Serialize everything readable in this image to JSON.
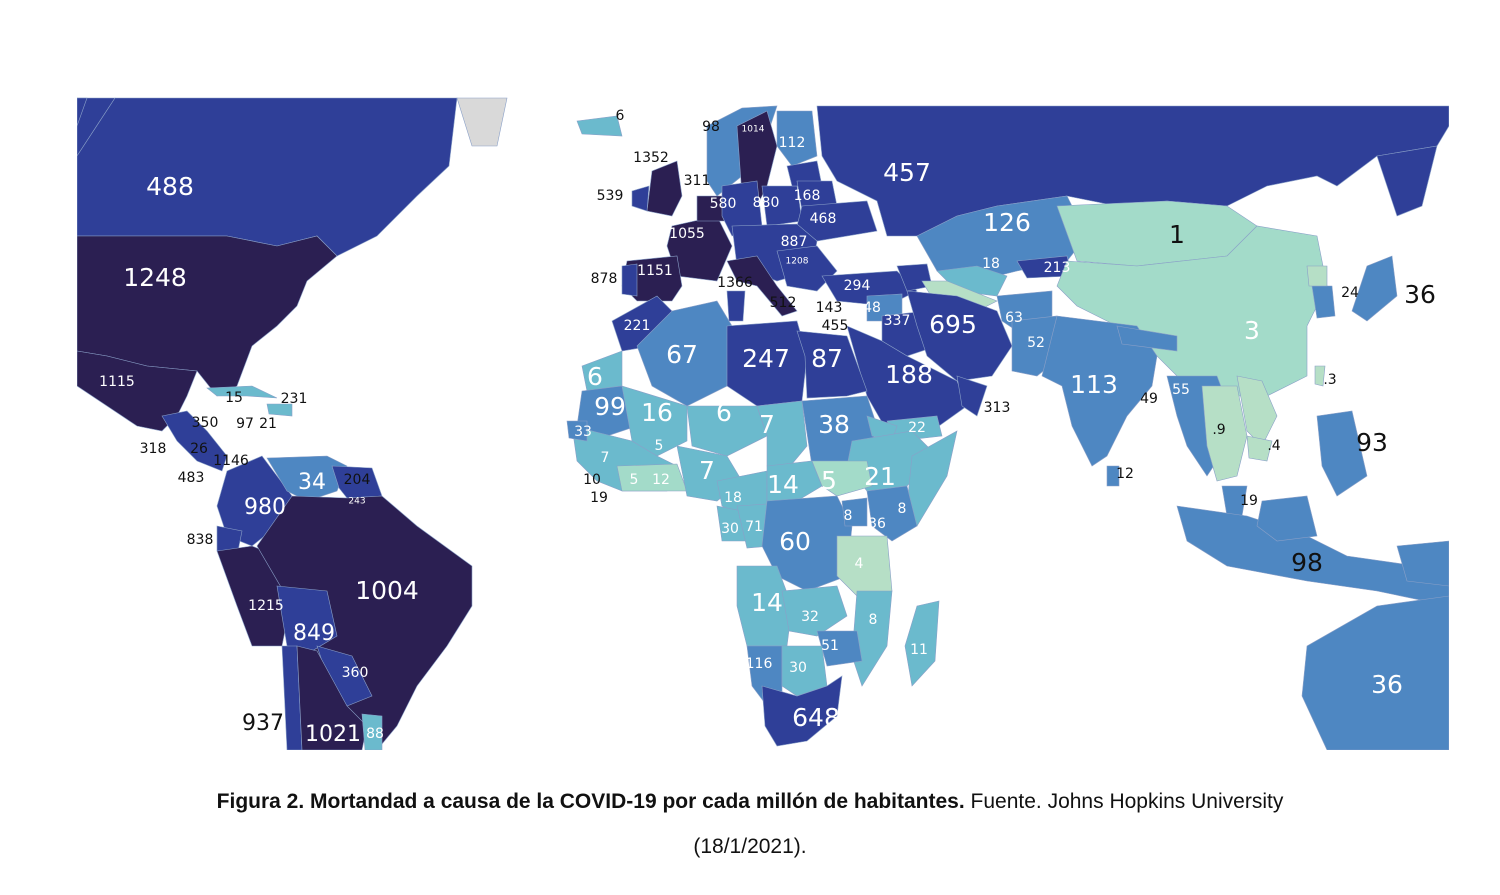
{
  "colors": {
    "ocean": "#ffffff",
    "nodata": "#d9d9d9",
    "c1": "#b6dfc6",
    "c2": "#a3dbc9",
    "c3": "#6bbacd",
    "c4": "#4e87c2",
    "c5": "#2f3f98",
    "c6": "#2b1f52"
  },
  "labels": [
    {
      "id": "canada",
      "text": "488",
      "size": "lg",
      "color": "light"
    },
    {
      "id": "usa",
      "text": "1248",
      "size": "lg",
      "color": "light"
    },
    {
      "id": "mexico",
      "text": "1115",
      "size": "sm",
      "color": "light"
    },
    {
      "id": "cuba",
      "text": "15",
      "size": "sm",
      "color": "dark"
    },
    {
      "id": "puertorico",
      "text": "231",
      "size": "sm",
      "color": "dark"
    },
    {
      "id": "belize",
      "text": "350",
      "size": "sm",
      "color": "dark"
    },
    {
      "id": "jamaica",
      "text": "97",
      "size": "sm",
      "color": "dark"
    },
    {
      "id": "haiti",
      "text": "21",
      "size": "sm",
      "color": "dark"
    },
    {
      "id": "guatemala",
      "text": "318",
      "size": "sm",
      "color": "dark"
    },
    {
      "id": "nicaragua",
      "text": "26",
      "size": "sm",
      "color": "dark"
    },
    {
      "id": "panama",
      "text": "1146",
      "size": "sm",
      "color": "dark"
    },
    {
      "id": "costarica",
      "text": "483",
      "size": "sm",
      "color": "dark"
    },
    {
      "id": "venezuela",
      "text": "34",
      "size": "md",
      "color": "light"
    },
    {
      "id": "guyana",
      "text": "204",
      "size": "sm",
      "color": "dark"
    },
    {
      "id": "suriname",
      "text": "243",
      "size": "xs",
      "color": "light"
    },
    {
      "id": "colombia",
      "text": "980",
      "size": "md",
      "color": "light"
    },
    {
      "id": "ecuador",
      "text": "838",
      "size": "sm",
      "color": "dark"
    },
    {
      "id": "brazil",
      "text": "1004",
      "size": "lg",
      "color": "light"
    },
    {
      "id": "peru",
      "text": "1215",
      "size": "sm",
      "color": "light"
    },
    {
      "id": "bolivia",
      "text": "849",
      "size": "md",
      "color": "light"
    },
    {
      "id": "paraguay",
      "text": "360",
      "size": "sm",
      "color": "light"
    },
    {
      "id": "chile",
      "text": "937",
      "size": "md",
      "color": "dark"
    },
    {
      "id": "argentina",
      "text": "1021",
      "size": "md",
      "color": "light"
    },
    {
      "id": "uruguay",
      "text": "88",
      "size": "sm",
      "color": "light"
    },
    {
      "id": "iceland",
      "text": "6",
      "size": "sm",
      "color": "dark"
    },
    {
      "id": "norway",
      "text": "98",
      "size": "sm",
      "color": "dark"
    },
    {
      "id": "sweden",
      "text": "1014",
      "size": "xs",
      "color": "light"
    },
    {
      "id": "finland",
      "text": "112",
      "size": "sm",
      "color": "light"
    },
    {
      "id": "uk",
      "text": "1352",
      "size": "sm",
      "color": "dark"
    },
    {
      "id": "denmark",
      "text": "311",
      "size": "sm",
      "color": "dark"
    },
    {
      "id": "ireland",
      "text": "539",
      "size": "sm",
      "color": "dark"
    },
    {
      "id": "germany",
      "text": "580",
      "size": "sm",
      "color": "light"
    },
    {
      "id": "poland",
      "text": "880",
      "size": "sm",
      "color": "light"
    },
    {
      "id": "belarus",
      "text": "168",
      "size": "sm",
      "color": "light"
    },
    {
      "id": "ukraine",
      "text": "468",
      "size": "sm",
      "color": "light"
    },
    {
      "id": "france",
      "text": "1055",
      "size": "sm",
      "color": "light"
    },
    {
      "id": "hungary",
      "text": "887",
      "size": "sm",
      "color": "light"
    },
    {
      "id": "bulgaria",
      "text": "1208",
      "size": "xs",
      "color": "light"
    },
    {
      "id": "portugal",
      "text": "878",
      "size": "sm",
      "color": "dark"
    },
    {
      "id": "spain",
      "text": "1151",
      "size": "sm",
      "color": "light"
    },
    {
      "id": "italy",
      "text": "1366",
      "size": "sm",
      "color": "dark"
    },
    {
      "id": "tunisia",
      "text": "512",
      "size": "sm",
      "color": "dark"
    },
    {
      "id": "cyprus",
      "text": "143",
      "size": "sm",
      "color": "dark"
    },
    {
      "id": "lebanon",
      "text": "455",
      "size": "sm",
      "color": "dark"
    },
    {
      "id": "turkey",
      "text": "294",
      "size": "sm",
      "color": "light"
    },
    {
      "id": "syria",
      "text": "48",
      "size": "sm",
      "color": "light"
    },
    {
      "id": "iraq",
      "text": "337",
      "size": "sm",
      "color": "light"
    },
    {
      "id": "russia",
      "text": "457",
      "size": "lg",
      "color": "light"
    },
    {
      "id": "kazakhstan",
      "text": "126",
      "size": "lg",
      "color": "light"
    },
    {
      "id": "uzbekistan",
      "text": "18",
      "size": "sm",
      "color": "light"
    },
    {
      "id": "kyrgyzstan",
      "text": "213",
      "size": "sm",
      "color": "light"
    },
    {
      "id": "mongolia",
      "text": "1",
      "size": "lg",
      "color": "dark"
    },
    {
      "id": "china",
      "text": "3",
      "size": "lg",
      "color": "light"
    },
    {
      "id": "southkorea",
      "text": "24",
      "size": "sm",
      "color": "dark"
    },
    {
      "id": "japan",
      "text": "36",
      "size": "lg",
      "color": "dark"
    },
    {
      "id": "taiwan",
      "text": ".3",
      "size": "sm",
      "color": "dark"
    },
    {
      "id": "iran",
      "text": "695",
      "size": "lg",
      "color": "light"
    },
    {
      "id": "afghanistan",
      "text": "63",
      "size": "sm",
      "color": "light"
    },
    {
      "id": "pakistan",
      "text": "52",
      "size": "sm",
      "color": "light"
    },
    {
      "id": "india",
      "text": "113",
      "size": "lg",
      "color": "light"
    },
    {
      "id": "nepal",
      "text": "55",
      "size": "sm",
      "color": "light"
    },
    {
      "id": "bangladesh",
      "text": "49",
      "size": "sm",
      "color": "dark"
    },
    {
      "id": "srilanka",
      "text": "12",
      "size": "sm",
      "color": "dark"
    },
    {
      "id": "saudi",
      "text": "188",
      "size": "lg",
      "color": "light"
    },
    {
      "id": "oman",
      "text": "313",
      "size": "sm",
      "color": "dark"
    },
    {
      "id": "yemen",
      "text": "22",
      "size": "sm",
      "color": "light"
    },
    {
      "id": "thailand",
      "text": ".9",
      "size": "sm",
      "color": "dark"
    },
    {
      "id": "vietnam",
      "text": ".4",
      "size": "sm",
      "color": "dark"
    },
    {
      "id": "philippines",
      "text": "93",
      "size": "lg",
      "color": "dark"
    },
    {
      "id": "malaysia",
      "text": "19",
      "size": "sm",
      "color": "dark"
    },
    {
      "id": "indonesia",
      "text": "98",
      "size": "lg",
      "color": "dark"
    },
    {
      "id": "australia",
      "text": "36",
      "size": "lg",
      "color": "light"
    },
    {
      "id": "morocco",
      "text": "221",
      "size": "sm",
      "color": "light"
    },
    {
      "id": "algeria",
      "text": "67",
      "size": "lg",
      "color": "light"
    },
    {
      "id": "libya",
      "text": "247",
      "size": "lg",
      "color": "light"
    },
    {
      "id": "egypt",
      "text": "87",
      "size": "lg",
      "color": "light"
    },
    {
      "id": "wsahara",
      "text": "6",
      "size": "lg",
      "color": "light"
    },
    {
      "id": "mauritania",
      "text": "99",
      "size": "lg",
      "color": "light"
    },
    {
      "id": "mali",
      "text": "16",
      "size": "lg",
      "color": "light"
    },
    {
      "id": "niger",
      "text": "6",
      "size": "lg",
      "color": "light"
    },
    {
      "id": "chad",
      "text": "7",
      "size": "lg",
      "color": "light"
    },
    {
      "id": "sudan",
      "text": "38",
      "size": "lg",
      "color": "light"
    },
    {
      "id": "senegal",
      "text": "33",
      "size": "sm",
      "color": "light"
    },
    {
      "id": "guinea",
      "text": "7",
      "size": "sm",
      "color": "light"
    },
    {
      "id": "burkina",
      "text": "5",
      "size": "sm",
      "color": "light"
    },
    {
      "id": "sierraleone",
      "text": "10",
      "size": "sm",
      "color": "dark"
    },
    {
      "id": "liberia",
      "text": "19",
      "size": "sm",
      "color": "dark"
    },
    {
      "id": "ivorycoast",
      "text": "5",
      "size": "sm",
      "color": "light"
    },
    {
      "id": "ghana",
      "text": "12",
      "size": "sm",
      "color": "light"
    },
    {
      "id": "nigeria",
      "text": "7",
      "size": "lg",
      "color": "light"
    },
    {
      "id": "cameroon",
      "text": "18",
      "size": "sm",
      "color": "light"
    },
    {
      "id": "car",
      "text": "14",
      "size": "lg",
      "color": "light"
    },
    {
      "id": "southsudan",
      "text": "5",
      "size": "lg",
      "color": "light"
    },
    {
      "id": "ethiopia",
      "text": "21",
      "size": "lg",
      "color": "light"
    },
    {
      "id": "somalia",
      "text": "8",
      "size": "sm",
      "color": "light"
    },
    {
      "id": "uganda",
      "text": "8",
      "size": "sm",
      "color": "light"
    },
    {
      "id": "kenya",
      "text": "36",
      "size": "sm",
      "color": "light"
    },
    {
      "id": "gabon",
      "text": "30",
      "size": "sm",
      "color": "light"
    },
    {
      "id": "congo",
      "text": "71",
      "size": "sm",
      "color": "light"
    },
    {
      "id": "drc",
      "text": "60",
      "size": "lg",
      "color": "light"
    },
    {
      "id": "tanzania",
      "text": "4",
      "size": "sm",
      "color": "light"
    },
    {
      "id": "angola",
      "text": "14",
      "size": "lg",
      "color": "light"
    },
    {
      "id": "zambia",
      "text": "32",
      "size": "sm",
      "color": "light"
    },
    {
      "id": "malawi",
      "text": "8",
      "size": "sm",
      "color": "light"
    },
    {
      "id": "zimbabwe",
      "text": "51",
      "size": "sm",
      "color": "light"
    },
    {
      "id": "namibia",
      "text": "116",
      "size": "sm",
      "color": "light"
    },
    {
      "id": "botswana",
      "text": "30",
      "size": "sm",
      "color": "light"
    },
    {
      "id": "madagascar",
      "text": "11",
      "size": "sm",
      "color": "light"
    },
    {
      "id": "southafrica",
      "text": "648",
      "size": "lg",
      "color": "light"
    }
  ],
  "caption": {
    "bold": "Figura 2. Mortandad a causa de la COVID-19 por cada millón de habitantes.",
    "normal": " Fuente. Johns Hopkins University",
    "line2": "(18/1/2021)."
  }
}
